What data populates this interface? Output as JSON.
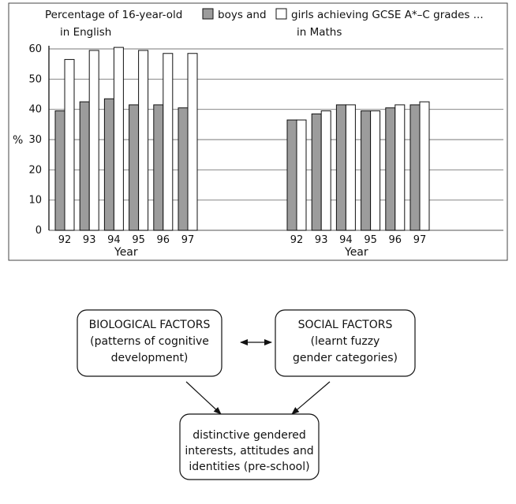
{
  "chart_data": [
    {
      "type": "bar",
      "title_line1_prefix": "Percentage of 16-year-old",
      "legend": [
        {
          "label": "boys and",
          "color": "#9c9c9c"
        },
        {
          "label": "girls achieving GCSE A*–C grades ...",
          "color": "#ffffff"
        }
      ],
      "subtitle": "in English",
      "ylabel": "%",
      "xlabel": "Year",
      "ylim": [
        0,
        60
      ],
      "yticks": [
        "0",
        "10",
        "20",
        "30",
        "40",
        "50",
        "60"
      ],
      "categories": [
        "92",
        "93",
        "94",
        "95",
        "96",
        "97"
      ],
      "series": [
        {
          "name": "boys",
          "color": "#9c9c9c",
          "values": [
            39.5,
            42.5,
            43.5,
            41.5,
            41.5,
            40.5
          ]
        },
        {
          "name": "girls",
          "color": "#ffffff",
          "values": [
            56.5,
            59.5,
            60.5,
            59.5,
            58.5,
            58.5
          ]
        }
      ],
      "grid": true
    },
    {
      "type": "bar",
      "subtitle": "in Maths",
      "xlabel": "Year",
      "ylim": [
        0,
        60
      ],
      "categories": [
        "92",
        "93",
        "94",
        "95",
        "96",
        "97"
      ],
      "series": [
        {
          "name": "boys",
          "color": "#9c9c9c",
          "values": [
            36.5,
            38.5,
            41.5,
            39.5,
            40.5,
            41.5
          ]
        },
        {
          "name": "girls",
          "color": "#ffffff",
          "values": [
            36.5,
            39.5,
            41.5,
            39.5,
            41.5,
            42.5
          ]
        }
      ],
      "grid": true
    }
  ],
  "diagram": {
    "biological": {
      "line1": "BIOLOGICAL FACTORS",
      "line2": "(patterns of cognitive",
      "line3": "development)"
    },
    "social": {
      "line1": "SOCIAL FACTORS",
      "line2": "(learnt fuzzy",
      "line3": "gender categories)"
    },
    "outcome": {
      "line1": "distinctive gendered",
      "line2": "interests, attitudes and",
      "line3": "identities (pre-school)"
    }
  }
}
